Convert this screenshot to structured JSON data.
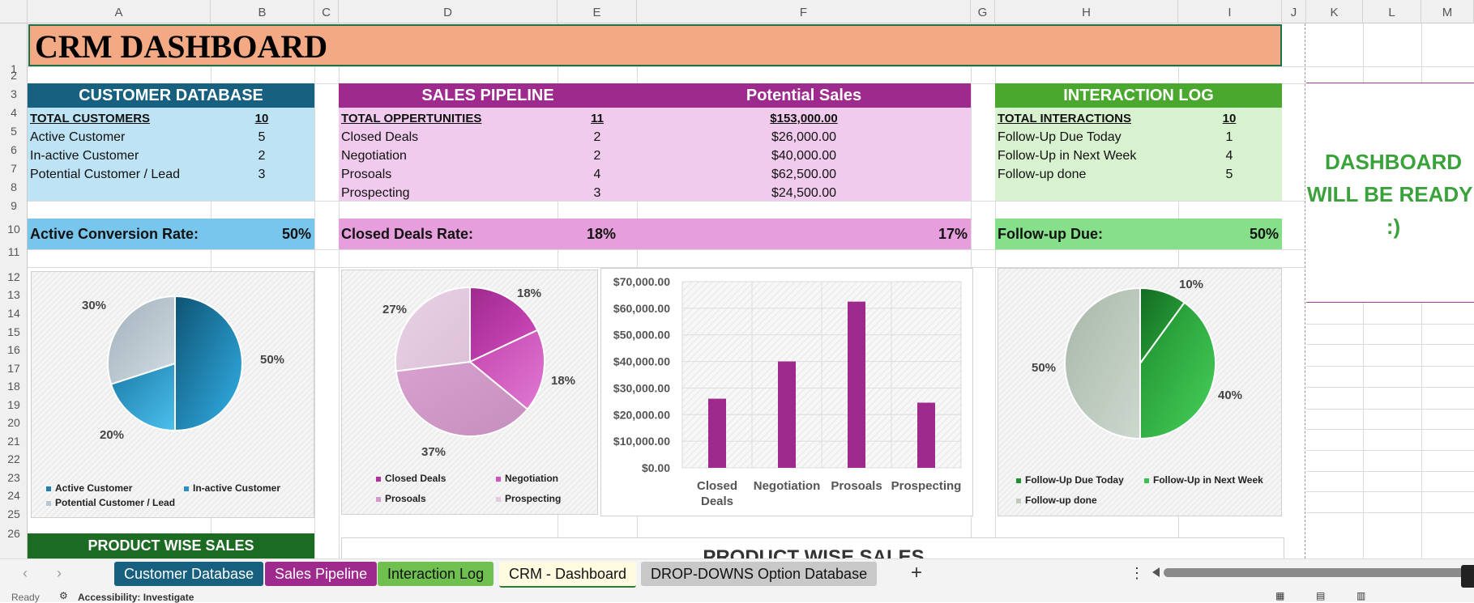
{
  "columns": [
    "A",
    "B",
    "C",
    "D",
    "E",
    "F",
    "G",
    "H",
    "I",
    "J",
    "K",
    "L",
    "M"
  ],
  "rows": [
    "1",
    "2",
    "3",
    "4",
    "5",
    "6",
    "7",
    "8",
    "9",
    "10",
    "11",
    "12",
    "13",
    "14",
    "15",
    "16",
    "17",
    "18",
    "19",
    "20",
    "21",
    "22",
    "23",
    "24",
    "25",
    "26"
  ],
  "title": "CRM DASHBOARD",
  "customer_db": {
    "header": "CUSTOMER DATABASE",
    "total_label": "TOTAL CUSTOMERS",
    "total_value": "10",
    "items": [
      {
        "label": "Active Customer",
        "value": "5"
      },
      {
        "label": "In-active Customer",
        "value": "2"
      },
      {
        "label": "Potential Customer / Lead",
        "value": "3"
      }
    ],
    "rate_label": "Active Conversion Rate:",
    "rate_value": "50%"
  },
  "sales_pipeline": {
    "header": "SALES PIPELINE",
    "header2": "Potential Sales",
    "total_label": "TOTAL OPPERTUNITIES",
    "total_value": "11",
    "total_sales": "$153,000.00",
    "items": [
      {
        "label": "Closed Deals",
        "value": "2",
        "sales": "$26,000.00"
      },
      {
        "label": "Negotiation",
        "value": "2",
        "sales": "$40,000.00"
      },
      {
        "label": "Prosoals",
        "value": "4",
        "sales": "$62,500.00"
      },
      {
        "label": "Prospecting",
        "value": "3",
        "sales": "$24,500.00"
      }
    ],
    "rate_label": "Closed Deals Rate:",
    "rate_value": "18%",
    "rate_value2": "17%"
  },
  "interaction_log": {
    "header": "INTERACTION LOG",
    "total_label": "TOTAL INTERACTIONS",
    "total_value": "10",
    "items": [
      {
        "label": "Follow-Up Due Today",
        "value": "1"
      },
      {
        "label": "Follow-Up in Next Week",
        "value": "4"
      },
      {
        "label": "Follow-up done",
        "value": "5"
      }
    ],
    "rate_label": "Follow-up Due:",
    "rate_value": "50%"
  },
  "dashboard_note": {
    "line1": "DASHBOARD",
    "line2": "WILL BE READY!",
    "line3": ":)"
  },
  "product_wise_sales": "PRODUCT WISE SALES",
  "product_wise_sales_chart_title": "PRODUCT WISE SALES",
  "chart_data": [
    {
      "type": "pie",
      "labels": [
        "Active Customer",
        "In-active Customer",
        "Potential Customer / Lead"
      ],
      "values": [
        50,
        20,
        30
      ],
      "data_labels": [
        "50%",
        "20%",
        "30%"
      ],
      "colors": [
        "#1f7fb3",
        "#2a8fc0",
        "#b9c6cf"
      ],
      "legend": "bottom"
    },
    {
      "type": "pie",
      "labels": [
        "Closed Deals",
        "Negotiation",
        "Prosoals",
        "Prospecting"
      ],
      "values": [
        18,
        18,
        37,
        27
      ],
      "data_labels": [
        "18%",
        "18%",
        "37%",
        "27%"
      ],
      "colors": [
        "#b62f9e",
        "#cf55bd",
        "#d49acb",
        "#e4c9e0"
      ],
      "legend": "bottom"
    },
    {
      "type": "bar",
      "categories": [
        "Closed Deals",
        "Negotiation",
        "Prosoals",
        "Prospecting"
      ],
      "values": [
        26000,
        40000,
        62500,
        24500
      ],
      "ylim": [
        0,
        70000
      ],
      "yticks": [
        "$0.00",
        "$10,000.00",
        "$20,000.00",
        "$30,000.00",
        "$40,000.00",
        "$50,000.00",
        "$60,000.00",
        "$70,000.00"
      ],
      "color": "#9e2a8e",
      "grid": true
    },
    {
      "type": "pie",
      "labels": [
        "Follow-Up Due Today",
        "Follow-Up in Next Week",
        "Follow-up done"
      ],
      "values": [
        10,
        40,
        50
      ],
      "data_labels": [
        "10%",
        "40%",
        "50%"
      ],
      "colors": [
        "#1f8f32",
        "#3dbf50",
        "#bccbbd"
      ],
      "legend": "bottom"
    }
  ],
  "sheet_tabs": [
    {
      "label": "Customer Database",
      "bg": "#17607f",
      "fg": "#ffffff"
    },
    {
      "label": "Sales Pipeline",
      "bg": "#9e2a8e",
      "fg": "#ffffff"
    },
    {
      "label": "Interaction Log",
      "bg": "#70c050",
      "fg": "#111111"
    },
    {
      "label": "CRM - Dashboard",
      "bg": "#fffbe0",
      "fg": "#111111",
      "active": true
    },
    {
      "label": "DROP-DOWNS Option Database",
      "bg": "#c8c8c8",
      "fg": "#111111"
    }
  ],
  "add_sheet": "+",
  "status": {
    "ready": "Ready",
    "accessibility": "Accessibility: Investigate"
  }
}
